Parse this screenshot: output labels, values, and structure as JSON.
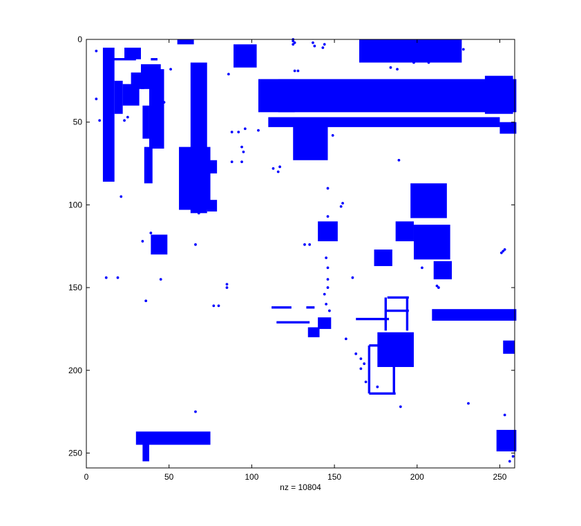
{
  "chart_data": {
    "type": "spy",
    "xlabel": "nz = 10804",
    "x_range": [
      0,
      259
    ],
    "y_range": [
      0,
      259
    ],
    "y_reversed": true,
    "x_ticks": [
      0,
      50,
      100,
      150,
      200,
      250
    ],
    "y_ticks": [
      0,
      50,
      100,
      150,
      200,
      250
    ],
    "grid": false,
    "marker_color": "#0000ff",
    "blocks": [
      [
        10,
        17,
        5,
        86
      ],
      [
        17,
        22,
        25,
        45
      ],
      [
        22,
        32,
        27,
        40
      ],
      [
        23,
        33,
        5,
        12
      ],
      [
        27,
        35,
        20,
        30
      ],
      [
        33,
        45,
        15,
        30
      ],
      [
        38,
        47,
        18,
        66
      ],
      [
        34,
        38,
        40,
        60
      ],
      [
        35,
        40,
        65,
        87
      ],
      [
        55,
        65,
        0,
        3
      ],
      [
        56,
        75,
        65,
        103
      ],
      [
        63,
        73,
        14,
        105
      ],
      [
        73,
        79,
        73,
        81
      ],
      [
        73,
        79,
        97,
        104
      ],
      [
        89,
        103,
        3,
        17
      ],
      [
        104,
        126,
        24,
        44
      ],
      [
        116,
        260,
        24,
        44
      ],
      [
        110,
        250,
        47,
        53
      ],
      [
        125,
        146,
        47,
        73
      ],
      [
        165,
        227,
        0,
        14
      ],
      [
        241,
        258,
        22,
        45
      ],
      [
        250,
        260,
        50,
        57
      ],
      [
        196,
        218,
        87,
        108
      ],
      [
        187,
        198,
        110,
        122
      ],
      [
        198,
        220,
        112,
        133
      ],
      [
        174,
        185,
        127,
        137
      ],
      [
        210,
        221,
        134,
        145
      ],
      [
        140,
        152,
        110,
        122
      ],
      [
        39,
        49,
        118,
        130
      ],
      [
        209,
        260,
        163,
        170
      ],
      [
        176,
        198,
        177,
        198
      ],
      [
        252,
        259,
        182,
        190
      ],
      [
        30,
        75,
        237,
        245
      ],
      [
        34,
        38,
        244,
        255
      ],
      [
        248,
        260,
        236,
        249
      ],
      [
        134,
        141,
        174,
        180
      ],
      [
        140,
        148,
        168,
        175
      ]
    ],
    "lines": [
      [
        "h",
        112,
        124,
        162
      ],
      [
        "h",
        133,
        138,
        162
      ],
      [
        "h",
        115,
        135,
        171
      ],
      [
        "h",
        163,
        183,
        169
      ],
      [
        "h",
        182,
        195,
        156
      ],
      [
        "h",
        181,
        195,
        164
      ],
      [
        "v",
        181,
        156,
        176
      ],
      [
        "v",
        194,
        156,
        176
      ],
      [
        "h",
        171,
        187,
        185
      ],
      [
        "h",
        171,
        187,
        214
      ],
      [
        "v",
        171,
        185,
        214
      ],
      [
        "v",
        186,
        185,
        214
      ],
      [
        "h",
        15,
        30,
        12
      ],
      [
        "h",
        39,
        43,
        12
      ]
    ],
    "points": [
      [
        6,
        7
      ],
      [
        6,
        36
      ],
      [
        8,
        49
      ],
      [
        12,
        144
      ],
      [
        19,
        144
      ],
      [
        21,
        95
      ],
      [
        23,
        49
      ],
      [
        25,
        47
      ],
      [
        34,
        122
      ],
      [
        36,
        158
      ],
      [
        39,
        117
      ],
      [
        42,
        125
      ],
      [
        45,
        145
      ],
      [
        51,
        18
      ],
      [
        47,
        38
      ],
      [
        66,
        124
      ],
      [
        68,
        105
      ],
      [
        70,
        104
      ],
      [
        85,
        148
      ],
      [
        86,
        21
      ],
      [
        85,
        150
      ],
      [
        77,
        161
      ],
      [
        80,
        161
      ],
      [
        66,
        225
      ],
      [
        88,
        56
      ],
      [
        88,
        74
      ],
      [
        92,
        56
      ],
      [
        96,
        54
      ],
      [
        94,
        65
      ],
      [
        95,
        68
      ],
      [
        94,
        74
      ],
      [
        104,
        55
      ],
      [
        116,
        80
      ],
      [
        117,
        77
      ],
      [
        113,
        78
      ],
      [
        125,
        0
      ],
      [
        125,
        1
      ],
      [
        126,
        2
      ],
      [
        125,
        3
      ],
      [
        128,
        19
      ],
      [
        126,
        19
      ],
      [
        132,
        124
      ],
      [
        135,
        124
      ],
      [
        144,
        154
      ],
      [
        145,
        132
      ],
      [
        146,
        145
      ],
      [
        146,
        90
      ],
      [
        146,
        107
      ],
      [
        146,
        138
      ],
      [
        146,
        150
      ],
      [
        145,
        160
      ],
      [
        147,
        164
      ],
      [
        154,
        101
      ],
      [
        155,
        99
      ],
      [
        161,
        144
      ],
      [
        137,
        2
      ],
      [
        138,
        4
      ],
      [
        143,
        5
      ],
      [
        144,
        3
      ],
      [
        162,
        36
      ],
      [
        149,
        58
      ],
      [
        157,
        181
      ],
      [
        163,
        190
      ],
      [
        166,
        193
      ],
      [
        168,
        196
      ],
      [
        166,
        199
      ],
      [
        169,
        207
      ],
      [
        176,
        210
      ],
      [
        184,
        17
      ],
      [
        188,
        18
      ],
      [
        189,
        73
      ],
      [
        190,
        222
      ],
      [
        203,
        138
      ],
      [
        212,
        149
      ],
      [
        213,
        150
      ],
      [
        228,
        6
      ],
      [
        231,
        220
      ],
      [
        251,
        129
      ],
      [
        252,
        128
      ],
      [
        253,
        127
      ],
      [
        253,
        227
      ],
      [
        256,
        255
      ],
      [
        258,
        252
      ],
      [
        201,
        11
      ],
      [
        198,
        14
      ],
      [
        218,
        12
      ],
      [
        223,
        13
      ],
      [
        207,
        14
      ]
    ]
  }
}
